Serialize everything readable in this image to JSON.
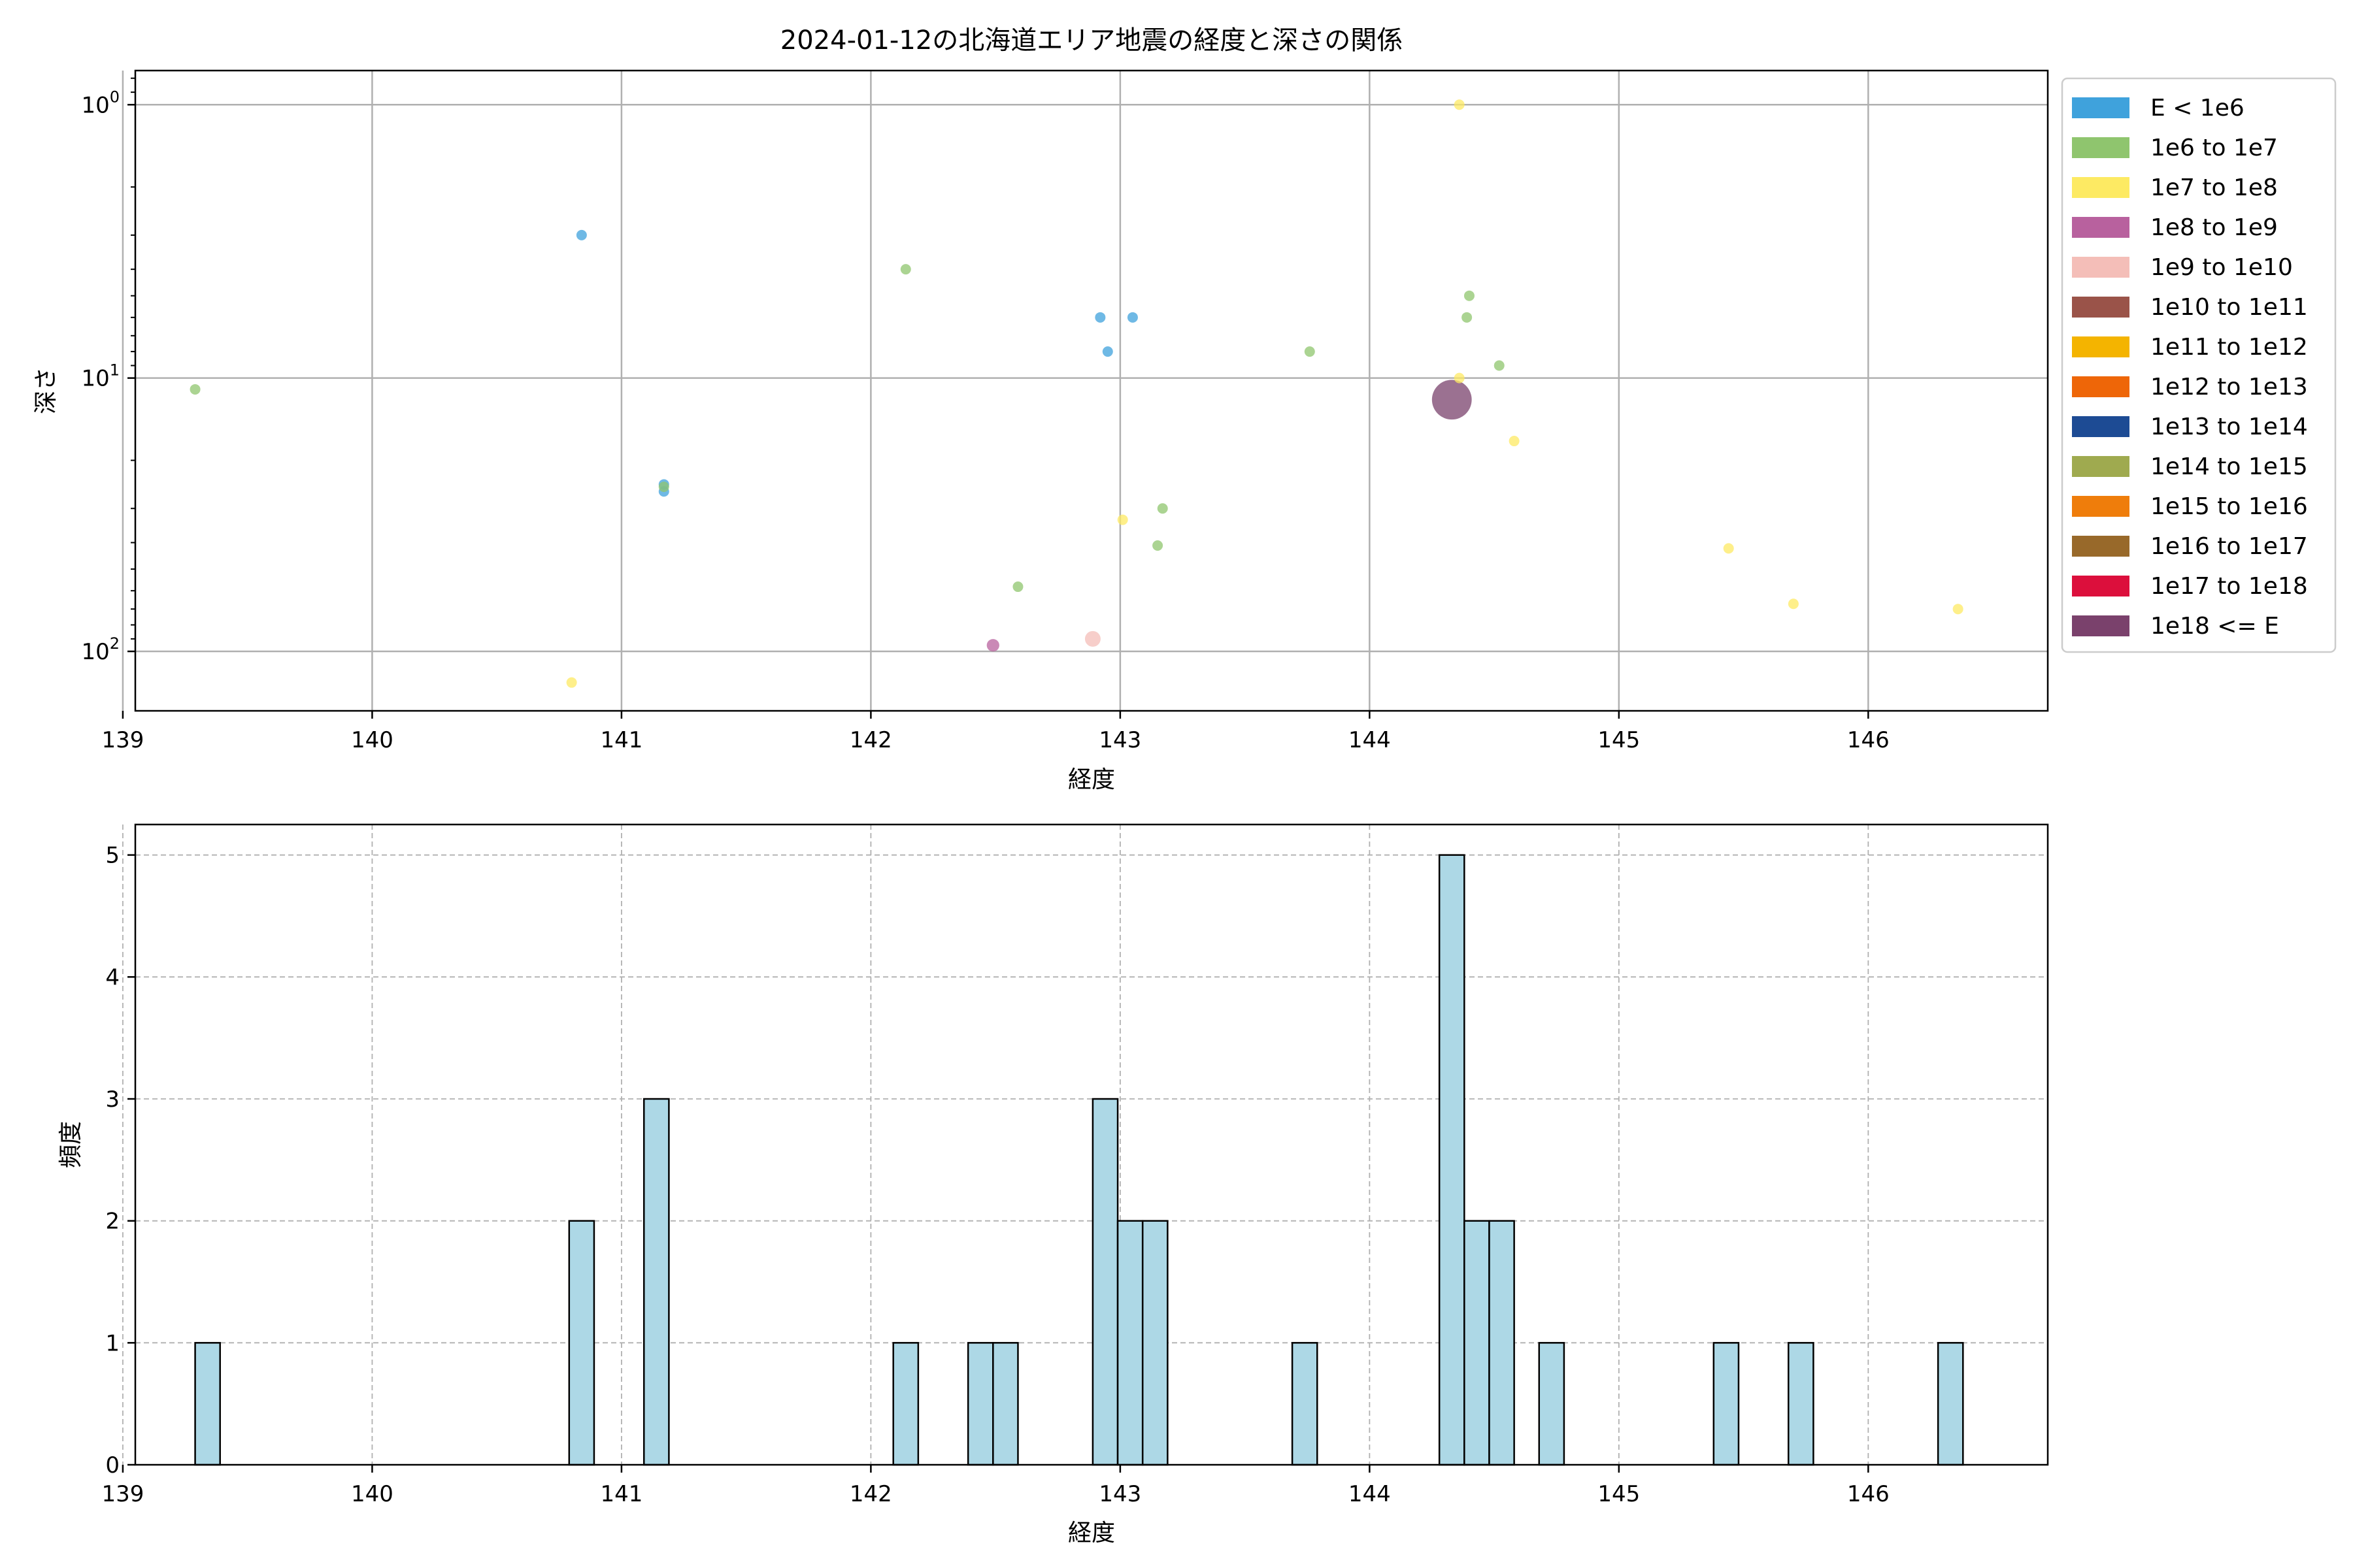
{
  "chart_data": [
    {
      "type": "scatter",
      "title": "2024-01-12の北海道エリア地震の経度と深さの関係",
      "xlabel": "経度",
      "ylabel": "深さ",
      "xlim": [
        139.05,
        146.72
      ],
      "ylim": [
        0.75,
        165
      ],
      "y_scale": "log",
      "y_inverted": true,
      "grid": true,
      "legend_position": "outside-right",
      "x_ticks": [
        "139",
        "140",
        "141",
        "142",
        "143",
        "144",
        "145",
        "146"
      ],
      "y_ticks": [
        {
          "value": 1,
          "mantissa": "10",
          "exp": "0"
        },
        {
          "value": 10,
          "mantissa": "10",
          "exp": "1"
        },
        {
          "value": 100,
          "mantissa": "10",
          "exp": "2"
        }
      ],
      "legend": [
        {
          "label": "E < 1e6",
          "color": "#3fa2dc"
        },
        {
          "label": "1e6 to 1e7",
          "color": "#8fc56e"
        },
        {
          "label": "1e7 to 1e8",
          "color": "#fdea63"
        },
        {
          "label": "1e8 to 1e9",
          "color": "#b8619e"
        },
        {
          "label": "1e9 to 1e10",
          "color": "#f4beb8"
        },
        {
          "label": "1e10 to 1e11",
          "color": "#9a5349"
        },
        {
          "label": "1e11 to 1e12",
          "color": "#f4b400"
        },
        {
          "label": "1e12 to 1e13",
          "color": "#ee6608"
        },
        {
          "label": "1e13 to 1e14",
          "color": "#1d4b94"
        },
        {
          "label": "1e14 to 1e15",
          "color": "#9faa4f"
        },
        {
          "label": "1e15 to 1e16",
          "color": "#ef7d0b"
        },
        {
          "label": "1e16 to 1e17",
          "color": "#98692a"
        },
        {
          "label": "1e17 to 1e18",
          "color": "#dc0f3c"
        },
        {
          "label": "1e18 <= E",
          "color": "#7a416c"
        }
      ],
      "points": [
        {
          "x": 139.29,
          "y": 11,
          "cls": 1,
          "size": 1
        },
        {
          "x": 140.8,
          "y": 130,
          "cls": 2,
          "size": 1
        },
        {
          "x": 140.84,
          "y": 3,
          "cls": 0,
          "size": 1
        },
        {
          "x": 141.17,
          "y": 24.5,
          "cls": 0,
          "size": 1
        },
        {
          "x": 141.17,
          "y": 26,
          "cls": 0,
          "size": 1
        },
        {
          "x": 141.17,
          "y": 25,
          "cls": 1,
          "size": 1
        },
        {
          "x": 142.14,
          "y": 4,
          "cls": 1,
          "size": 1
        },
        {
          "x": 142.49,
          "y": 95,
          "cls": 3,
          "size": 1.2
        },
        {
          "x": 142.59,
          "y": 58,
          "cls": 1,
          "size": 1
        },
        {
          "x": 142.89,
          "y": 90,
          "cls": 4,
          "size": 1.5
        },
        {
          "x": 142.92,
          "y": 6,
          "cls": 0,
          "size": 1
        },
        {
          "x": 142.95,
          "y": 8,
          "cls": 0,
          "size": 1
        },
        {
          "x": 143.01,
          "y": 33,
          "cls": 2,
          "size": 1
        },
        {
          "x": 143.05,
          "y": 6,
          "cls": 0,
          "size": 1
        },
        {
          "x": 143.15,
          "y": 41,
          "cls": 1,
          "size": 1
        },
        {
          "x": 143.17,
          "y": 30,
          "cls": 1,
          "size": 1
        },
        {
          "x": 143.76,
          "y": 8,
          "cls": 1,
          "size": 1
        },
        {
          "x": 144.33,
          "y": 12,
          "cls": 13,
          "size": 3.8
        },
        {
          "x": 144.36,
          "y": 1,
          "cls": 2,
          "size": 1
        },
        {
          "x": 144.36,
          "y": 10,
          "cls": 2,
          "size": 1
        },
        {
          "x": 144.39,
          "y": 6,
          "cls": 1,
          "size": 1
        },
        {
          "x": 144.4,
          "y": 5,
          "cls": 1,
          "size": 1
        },
        {
          "x": 144.52,
          "y": 9,
          "cls": 1,
          "size": 1
        },
        {
          "x": 144.58,
          "y": 17,
          "cls": 2,
          "size": 1
        },
        {
          "x": 145.44,
          "y": 42,
          "cls": 2,
          "size": 1
        },
        {
          "x": 145.7,
          "y": 67,
          "cls": 2,
          "size": 1
        },
        {
          "x": 146.36,
          "y": 70,
          "cls": 2,
          "size": 1
        }
      ]
    },
    {
      "type": "histogram",
      "xlabel": "経度",
      "ylabel": "頻度",
      "xlim": [
        139.05,
        146.72
      ],
      "ylim": [
        0,
        5.25
      ],
      "grid": true,
      "bar_color": "#add8e6",
      "x_ticks": [
        "139",
        "140",
        "141",
        "142",
        "143",
        "144",
        "145",
        "146"
      ],
      "y_ticks": [
        "0",
        "1",
        "2",
        "3",
        "4",
        "5"
      ],
      "bin_width": 0.1,
      "bins": [
        {
          "start": 139.29,
          "count": 1
        },
        {
          "start": 140.79,
          "count": 2
        },
        {
          "start": 141.09,
          "count": 3
        },
        {
          "start": 142.09,
          "count": 1
        },
        {
          "start": 142.39,
          "count": 1
        },
        {
          "start": 142.49,
          "count": 1
        },
        {
          "start": 142.89,
          "count": 3
        },
        {
          "start": 142.99,
          "count": 2
        },
        {
          "start": 143.09,
          "count": 2
        },
        {
          "start": 143.69,
          "count": 1
        },
        {
          "start": 144.28,
          "count": 5
        },
        {
          "start": 144.38,
          "count": 2
        },
        {
          "start": 144.48,
          "count": 2
        },
        {
          "start": 144.68,
          "count": 1
        },
        {
          "start": 145.38,
          "count": 1
        },
        {
          "start": 145.68,
          "count": 1
        },
        {
          "start": 146.28,
          "count": 1
        }
      ]
    }
  ]
}
